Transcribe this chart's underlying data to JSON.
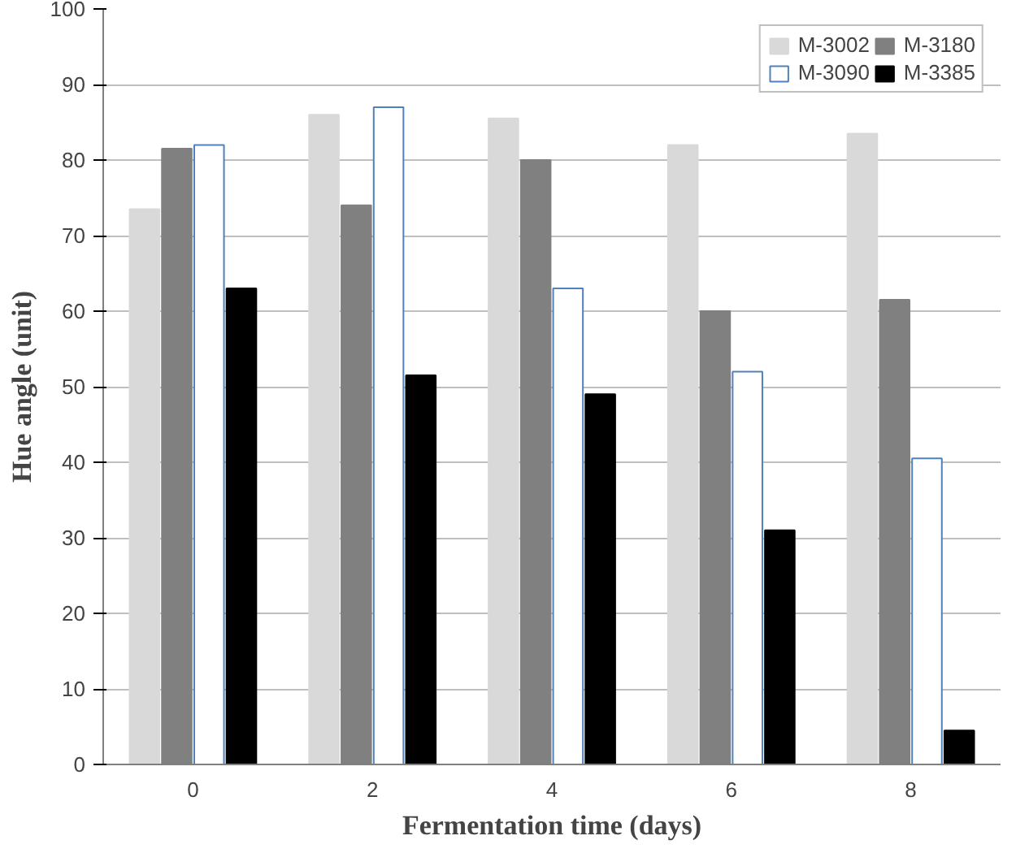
{
  "chart_data": {
    "type": "bar",
    "xlabel": "Fermentation time (days)",
    "ylabel": "Hue angle (unit)",
    "categories": [
      "0",
      "2",
      "4",
      "6",
      "8"
    ],
    "series": [
      {
        "name": "M-3002",
        "color": "#d9d9d9",
        "values": [
          73.5,
          86,
          85.5,
          82,
          83.5
        ]
      },
      {
        "name": "M-3180",
        "color": "#808080",
        "values": [
          81.5,
          74,
          80,
          60,
          61.5
        ]
      },
      {
        "name": "M-3090",
        "color": "#ffffff",
        "values": [
          82,
          87,
          63,
          52,
          40.5
        ]
      },
      {
        "name": "M-3385",
        "color": "#000000",
        "values": [
          63,
          51.5,
          49,
          31,
          4.5
        ]
      }
    ],
    "ylim": [
      0,
      100
    ],
    "yticks": [
      0,
      10,
      20,
      30,
      40,
      50,
      60,
      70,
      80,
      90,
      100
    ],
    "grid": "y",
    "legend": "top right"
  }
}
